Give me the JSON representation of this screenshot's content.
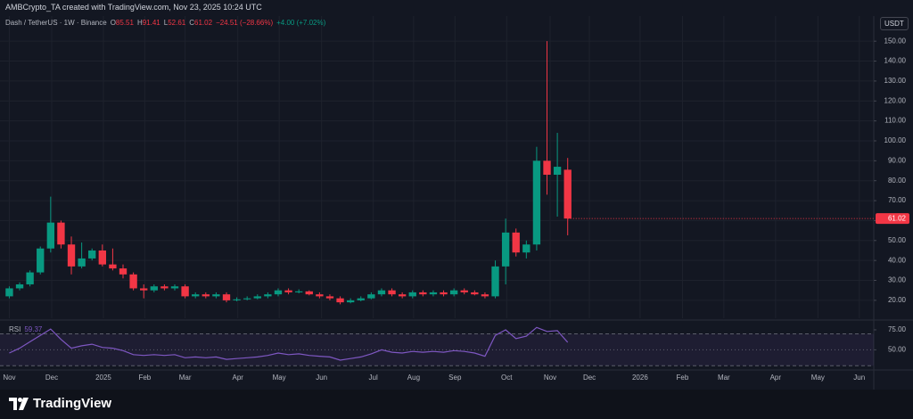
{
  "header": "AMBCrypto_TA created with TradingView.com, Nov 23, 2025 10:24 UTC",
  "chart_data": {
    "type": "candlestick",
    "symbol": "Dash / TetherUS · 1W · Binance",
    "ohlc_header": [
      {
        "label": "O",
        "value": "85.51"
      },
      {
        "label": "H",
        "value": "91.41"
      },
      {
        "label": "L",
        "value": "52.61"
      },
      {
        "label": "C",
        "value": "61.02"
      }
    ],
    "change": "−24.51 (−28.66%)",
    "live_change": "+4.00 (+7.02%)",
    "currency": "USDT",
    "up_color": "#089981",
    "down_color": "#f23645",
    "open": [
      22,
      26,
      28,
      34,
      46,
      59,
      48,
      37,
      41,
      45,
      38,
      36,
      33,
      26,
      25,
      27,
      26,
      27,
      22,
      23,
      22,
      23,
      20,
      20.5,
      21,
      22,
      23,
      25,
      24,
      24.5,
      23,
      22,
      21,
      19,
      20,
      21,
      23,
      25,
      23,
      22,
      24,
      23,
      24,
      23,
      25,
      24,
      23,
      22,
      37,
      54,
      44,
      48,
      90,
      83,
      85.51
    ],
    "high": [
      27,
      29,
      35,
      47,
      72,
      60,
      52,
      49,
      46,
      48,
      46,
      38,
      34,
      28,
      28,
      28,
      28,
      28,
      24,
      24,
      24,
      24,
      21.5,
      22,
      23,
      24,
      26,
      26,
      25.5,
      25,
      24,
      23,
      22,
      21,
      22,
      24,
      26,
      26,
      24,
      25,
      25,
      25,
      25,
      26,
      26,
      25,
      24,
      40,
      61,
      56,
      50,
      97,
      150,
      104,
      91.41
    ],
    "low": [
      21,
      25,
      27,
      33,
      44,
      46,
      33,
      36,
      40,
      37,
      35,
      31,
      25,
      21,
      24,
      25,
      25,
      21,
      21,
      21,
      21,
      19,
      19.5,
      20,
      20.5,
      21,
      22,
      23,
      23.5,
      22.5,
      21,
      20,
      18,
      18.5,
      19.5,
      20.5,
      22,
      22,
      21,
      21,
      22,
      22,
      22,
      22,
      23,
      22.5,
      21,
      21,
      28,
      42,
      41,
      45,
      73,
      62,
      52.61
    ],
    "close": [
      26,
      28,
      34,
      46,
      59,
      48,
      37,
      41,
      45,
      38,
      36,
      33,
      26,
      25,
      27,
      26,
      27,
      22,
      23,
      22,
      23,
      20,
      20.5,
      21,
      22,
      23,
      25,
      24,
      24.5,
      23,
      22,
      21,
      19,
      20,
      21,
      23,
      25,
      23,
      22,
      24,
      23,
      24,
      23,
      25,
      24,
      23,
      22,
      37,
      54,
      44,
      48,
      90,
      83,
      87,
      61.02
    ],
    "last_price_label": "61.02",
    "ylim": [
      11,
      162.6
    ],
    "yticks": [
      {
        "value": 20,
        "label": "20.00"
      },
      {
        "value": 30,
        "label": "30.00"
      },
      {
        "value": 40,
        "label": "40.00"
      },
      {
        "value": 50,
        "label": "50.00"
      },
      {
        "value": 60,
        "label": "60.00"
      },
      {
        "value": 70,
        "label": "70.00"
      },
      {
        "value": 80,
        "label": "80.00"
      },
      {
        "value": 90,
        "label": "90.00"
      },
      {
        "value": 100,
        "label": "100.00"
      },
      {
        "value": 110,
        "label": "110.00"
      },
      {
        "value": 120,
        "label": "120.00"
      },
      {
        "value": 130,
        "label": "130.00"
      },
      {
        "value": 140,
        "label": "140.00"
      },
      {
        "value": 150,
        "label": "150.00"
      }
    ],
    "xlim": [
      -0.9,
      83.6
    ],
    "xticks": [
      {
        "value": 0,
        "label": "Nov"
      },
      {
        "value": 4.1,
        "label": "Dec"
      },
      {
        "value": 9.1,
        "label": "2025"
      },
      {
        "value": 13.1,
        "label": "Feb"
      },
      {
        "value": 17,
        "label": "Mar"
      },
      {
        "value": 22.1,
        "label": "Apr"
      },
      {
        "value": 26.1,
        "label": "May"
      },
      {
        "value": 30.2,
        "label": "Jun"
      },
      {
        "value": 35.2,
        "label": "Jul"
      },
      {
        "value": 39.1,
        "label": "Aug"
      },
      {
        "value": 43.1,
        "label": "Sep"
      },
      {
        "value": 48.1,
        "label": "Oct"
      },
      {
        "value": 52.3,
        "label": "Nov"
      },
      {
        "value": 56.1,
        "label": "Dec"
      },
      {
        "value": 61,
        "label": "2026"
      },
      {
        "value": 65.1,
        "label": "Feb"
      },
      {
        "value": 69.1,
        "label": "Mar"
      },
      {
        "value": 74.1,
        "label": "Apr"
      },
      {
        "value": 78.2,
        "label": "May"
      },
      {
        "value": 82.2,
        "label": "Jun"
      }
    ],
    "rsi": {
      "name": "RSI",
      "color": "#7e57c2",
      "values": [
        46,
        52,
        60,
        68,
        76,
        63,
        52,
        55,
        57,
        53,
        52,
        49,
        44,
        43,
        44,
        43,
        44,
        40,
        41,
        40,
        41,
        38,
        39,
        40,
        41,
        43,
        46,
        44,
        45,
        43,
        42,
        41,
        37,
        39,
        41,
        45,
        50,
        47,
        46,
        48,
        47,
        48,
        47,
        49,
        48,
        46,
        42,
        68,
        75,
        64,
        67,
        78,
        73,
        74,
        59.37
      ],
      "ylim": [
        27,
        85
      ],
      "yticks": [
        {
          "value": 75,
          "label": "75.00"
        },
        {
          "value": 50,
          "label": "50.00"
        }
      ],
      "bands": [
        70,
        50,
        30
      ]
    }
  },
  "footer": {
    "brand": "TradingView"
  }
}
